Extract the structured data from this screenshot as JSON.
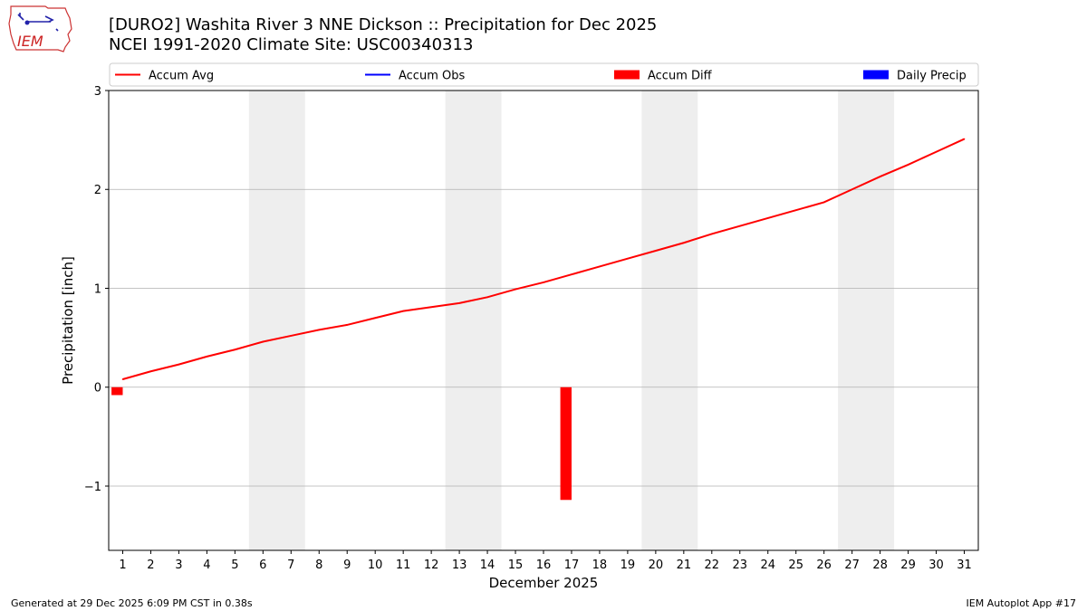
{
  "header": {
    "title_line1": "[DURO2] Washita River 3 NNE Dickson :: Precipitation for Dec 2025",
    "title_line2": "NCEI 1991-2020 Climate Site: USC00340313",
    "logo_text": "IEM"
  },
  "footer": {
    "generated": "Generated at 29 Dec 2025 6:09 PM CST in 0.38s",
    "app": "IEM Autoplot App #17"
  },
  "colors": {
    "avg": "#ff0000",
    "obs": "#0000ff",
    "diff": "#ff0000",
    "daily": "#0000ff",
    "weekend_shade": "#eeeeee",
    "grid": "#b0b0b0"
  },
  "chart_data": {
    "type": "line",
    "xlabel": "December 2025",
    "ylabel": "Precipitation [inch]",
    "x": [
      1,
      2,
      3,
      4,
      5,
      6,
      7,
      8,
      9,
      10,
      11,
      12,
      13,
      14,
      15,
      16,
      17,
      18,
      19,
      20,
      21,
      22,
      23,
      24,
      25,
      26,
      27,
      28,
      29,
      30,
      31
    ],
    "x_ticks": [
      "1",
      "2",
      "3",
      "4",
      "5",
      "6",
      "7",
      "8",
      "9",
      "10",
      "11",
      "12",
      "13",
      "14",
      "15",
      "16",
      "17",
      "18",
      "19",
      "20",
      "21",
      "22",
      "23",
      "24",
      "25",
      "26",
      "27",
      "28",
      "29",
      "30",
      "31"
    ],
    "xlim": [
      0.5,
      31.5
    ],
    "ylim": [
      -1.65,
      3.0
    ],
    "y_ticks": [
      -1,
      0,
      1,
      2,
      3
    ],
    "y_tick_labels": [
      "−1",
      "0",
      "1",
      "2",
      "3"
    ],
    "grid": "horizontal",
    "legend": {
      "position": "top",
      "entries": [
        {
          "label": "Accum Avg",
          "kind": "line",
          "color_key": "avg"
        },
        {
          "label": "Accum Obs",
          "kind": "line",
          "color_key": "obs"
        },
        {
          "label": "Accum Diff",
          "kind": "bar",
          "color_key": "diff"
        },
        {
          "label": "Daily Precip",
          "kind": "bar",
          "color_key": "daily"
        }
      ]
    },
    "weekend_spans": [
      [
        6,
        7
      ],
      [
        13,
        14
      ],
      [
        20,
        21
      ],
      [
        27,
        28
      ]
    ],
    "series": [
      {
        "name": "Accum Avg",
        "type": "line",
        "x": [
          1,
          2,
          3,
          4,
          5,
          6,
          7,
          8,
          9,
          10,
          11,
          12,
          13,
          14,
          15,
          16,
          17,
          18,
          19,
          20,
          21,
          22,
          23,
          24,
          25,
          26,
          27,
          28,
          29,
          30,
          31
        ],
        "values": [
          0.08,
          0.16,
          0.23,
          0.31,
          0.38,
          0.46,
          0.52,
          0.58,
          0.63,
          0.7,
          0.77,
          0.81,
          0.85,
          0.91,
          0.99,
          1.06,
          1.14,
          1.22,
          1.3,
          1.38,
          1.46,
          1.55,
          1.63,
          1.71,
          1.79,
          1.87,
          2.0,
          2.13,
          2.25,
          2.38,
          2.51
        ]
      },
      {
        "name": "Accum Diff",
        "type": "bar",
        "points": [
          {
            "x": 0.8,
            "value": -0.08
          },
          {
            "x": 16.8,
            "value": -1.14
          }
        ]
      }
    ]
  }
}
